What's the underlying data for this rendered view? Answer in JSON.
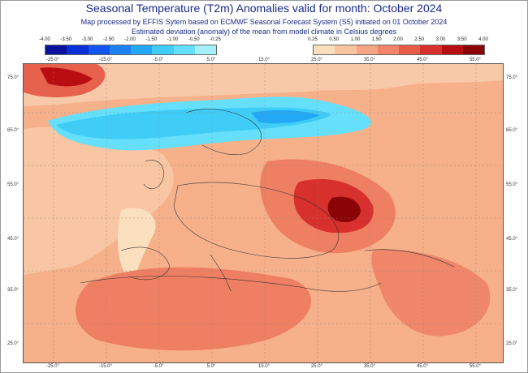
{
  "title": "Seasonal Temperature (T2m) Anomalies valid for month: October 2024",
  "subtitle1": "Map processed by EFFIS Sytem based on ECMWF Seasonal Forecast System (S5) initiated on 01 October 2024",
  "subtitle2": "Estimated deviation (anomaly) of the mean from model climate in Celsius degrees",
  "scale_cold": {
    "labels": [
      "-4.00",
      "-3.50",
      "-3.00",
      "-2.50",
      "-2.00",
      "-1.50",
      "-1.00",
      "-0.50",
      "-0.25"
    ],
    "colors": [
      "#08129a",
      "#0b2fd6",
      "#1255f0",
      "#1a82f5",
      "#22a8f6",
      "#3fcdf7",
      "#66e0fa",
      "#a6f0fb"
    ]
  },
  "scale_warm": {
    "labels": [
      "0.25",
      "0.50",
      "1.00",
      "1.50",
      "2.00",
      "2.50",
      "3.00",
      "3.50",
      "4.00"
    ],
    "colors": [
      "#fbe0bf",
      "#f8c59f",
      "#f5a584",
      "#f2846a",
      "#ea5a48",
      "#d8302c",
      "#b80e12",
      "#8a0407"
    ]
  },
  "lon_labels": [
    "-25.0°",
    "-15.0°",
    "-5.0°",
    "5.0°",
    "15.0°",
    "25.0°",
    "35.0°",
    "45.0°",
    "55.0°"
  ],
  "lat_labels": [
    "75.0°",
    "65.0°",
    "55.0°",
    "45.0°",
    "35.0°",
    "25.0°"
  ]
}
